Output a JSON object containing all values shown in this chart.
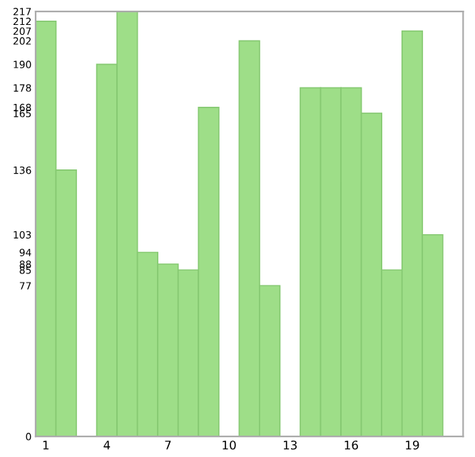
{
  "chart_data": {
    "type": "bar",
    "categories": [
      "1",
      null,
      null,
      "4",
      null,
      null,
      "7",
      null,
      null,
      "10",
      null,
      null,
      "13",
      null,
      null,
      "16",
      null,
      null,
      "19",
      null,
      null
    ],
    "values": [
      212,
      136,
      0,
      190,
      217,
      94,
      88,
      85,
      168,
      0,
      202,
      77,
      0,
      178,
      178,
      178,
      165,
      85,
      207,
      103,
      0
    ],
    "color": "#9ede88",
    "ylim": [
      0,
      217
    ],
    "yticks": [
      0,
      77,
      85,
      88,
      94,
      103,
      136,
      165,
      168,
      178,
      190,
      202,
      207,
      212,
      217
    ],
    "grid": false
  }
}
